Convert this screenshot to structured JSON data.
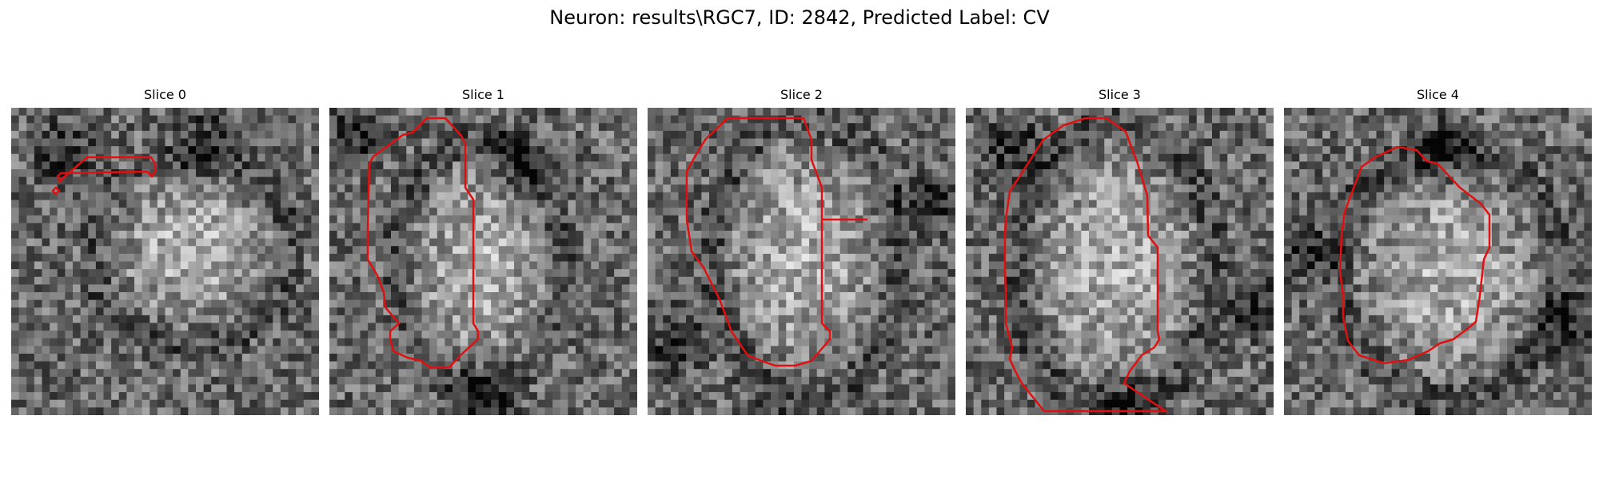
{
  "figure": {
    "title": "Neuron: results\\RGC7, ID: 2842, Predicted Label: CV"
  },
  "panels": [
    {
      "title": "Slice 0"
    },
    {
      "title": "Slice 1"
    },
    {
      "title": "Slice 2"
    },
    {
      "title": "Slice 3"
    },
    {
      "title": "Slice 4"
    }
  ],
  "colors": {
    "contour": "#e01010",
    "background": "#ffffff"
  }
}
